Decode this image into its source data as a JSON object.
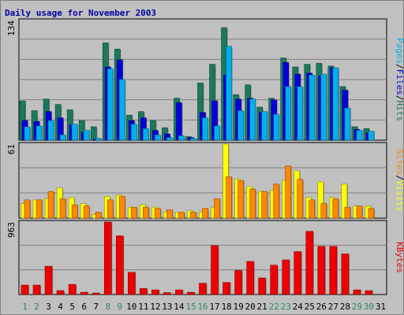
{
  "title": "Daily usage for November 2003",
  "colors": {
    "hits": "#1a7a5e",
    "files": "#0000dd",
    "pages": "#00b0ee",
    "visits": "#ffff00",
    "sites": "#ff8800",
    "kbytes": "#ee0000",
    "weekend_label": "#2e8b57",
    "weekday_label": "#000000"
  },
  "chart_data": [
    {
      "type": "bar",
      "title": "Daily usage for November 2003",
      "panel": "hits-files-pages",
      "ymax_label": "134",
      "ylim": [
        0,
        134
      ],
      "categories": [
        "1",
        "2",
        "3",
        "4",
        "5",
        "6",
        "7",
        "8",
        "9",
        "10",
        "11",
        "12",
        "13",
        "14",
        "15",
        "16",
        "17",
        "18",
        "19",
        "20",
        "21",
        "22",
        "23",
        "24",
        "25",
        "26",
        "27",
        "28",
        "29",
        "30",
        "31"
      ],
      "weekend_days": [
        "1",
        "2",
        "8",
        "9",
        "15",
        "16",
        "22",
        "23",
        "29",
        "30"
      ],
      "axis_label_parts": [
        "Pages",
        "Files",
        "Hits"
      ],
      "series": [
        {
          "name": "Hits",
          "values": [
            44,
            33,
            46,
            40,
            34,
            22,
            15,
            109,
            102,
            28,
            32,
            22,
            14,
            47,
            4,
            64,
            85,
            126,
            51,
            62,
            37,
            47,
            92,
            82,
            85,
            86,
            83,
            60,
            15,
            13,
            0
          ]
        },
        {
          "name": "Files",
          "values": [
            22,
            21,
            32,
            25,
            17,
            9,
            1,
            82,
            90,
            22,
            25,
            11,
            7,
            42,
            3,
            31,
            44,
            73,
            46,
            47,
            31,
            45,
            87,
            74,
            75,
            72,
            81,
            56,
            12,
            8,
            0
          ]
        },
        {
          "name": "Pages",
          "values": [
            15,
            16,
            22,
            6,
            18,
            11,
            2,
            80,
            68,
            18,
            13,
            6,
            3,
            5,
            2,
            25,
            16,
            105,
            33,
            46,
            32,
            29,
            60,
            60,
            73,
            74,
            81,
            36,
            11,
            10,
            0
          ]
        }
      ]
    },
    {
      "type": "bar",
      "panel": "visits-sites",
      "ymax_label": "61",
      "ylim": [
        0,
        61
      ],
      "categories": [
        "1",
        "2",
        "3",
        "4",
        "5",
        "6",
        "7",
        "8",
        "9",
        "10",
        "11",
        "12",
        "13",
        "14",
        "15",
        "16",
        "17",
        "18",
        "19",
        "20",
        "21",
        "22",
        "23",
        "24",
        "25",
        "26",
        "27",
        "28",
        "29",
        "30",
        "31"
      ],
      "axis_label_parts": [
        "Sites",
        "Visits"
      ],
      "series": [
        {
          "name": "Visits",
          "values": [
            12,
            15,
            16,
            25,
            17,
            12,
            3,
            18,
            19,
            9,
            11,
            9,
            5,
            5,
            6,
            5,
            9,
            61,
            32,
            26,
            22,
            23,
            31,
            39,
            17,
            30,
            17,
            28,
            10,
            10,
            0
          ]
        },
        {
          "name": "Sites",
          "values": [
            15,
            15,
            22,
            16,
            11,
            10,
            5,
            15,
            18,
            9,
            9,
            8,
            7,
            5,
            5,
            8,
            16,
            34,
            31,
            24,
            22,
            28,
            43,
            32,
            15,
            12,
            16,
            9,
            10,
            8,
            0
          ]
        }
      ]
    },
    {
      "type": "bar",
      "panel": "kbytes",
      "ymax_label": "963",
      "ylim": [
        0,
        963
      ],
      "categories": [
        "1",
        "2",
        "3",
        "4",
        "5",
        "6",
        "7",
        "8",
        "9",
        "10",
        "11",
        "12",
        "13",
        "14",
        "15",
        "16",
        "17",
        "18",
        "19",
        "20",
        "21",
        "22",
        "23",
        "24",
        "25",
        "26",
        "27",
        "28",
        "29",
        "30",
        "31"
      ],
      "axis_label_parts": [
        "KBytes"
      ],
      "series": [
        {
          "name": "KBytes",
          "values": [
            125,
            125,
            375,
            52,
            135,
            30,
            20,
            963,
            780,
            295,
            80,
            62,
            25,
            62,
            30,
            150,
            650,
            160,
            320,
            440,
            220,
            390,
            460,
            570,
            840,
            640,
            640,
            540,
            62,
            52,
            0
          ]
        }
      ]
    }
  ]
}
